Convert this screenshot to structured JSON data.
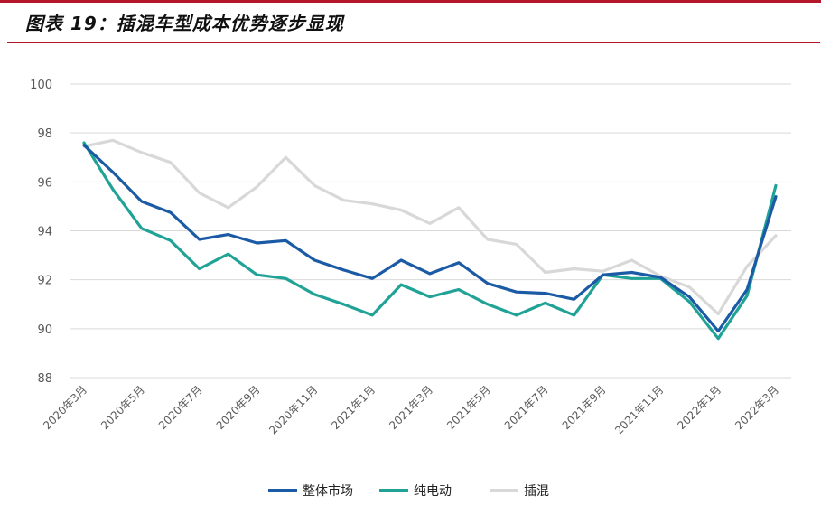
{
  "caption": "图表 19：插混车型成本优势逐步显现",
  "colors": {
    "accent": "#b5172a",
    "overall": "#1b5aa4",
    "bev": "#20a396",
    "phev": "#d8d8d8",
    "grid": "#d9d9d9"
  },
  "chart_data": {
    "type": "line",
    "title": "插混车型成本优势逐步显现",
    "xlabel": "",
    "ylabel": "",
    "ylim": [
      88,
      100
    ],
    "yticks": [
      88,
      90,
      92,
      94,
      96,
      98,
      100
    ],
    "grid": true,
    "legend_position": "bottom",
    "x": [
      "2020年3月",
      "2020年4月",
      "2020年5月",
      "2020年6月",
      "2020年7月",
      "2020年8月",
      "2020年9月",
      "2020年10月",
      "2020年11月",
      "2020年12月",
      "2021年1月",
      "2021年2月",
      "2021年3月",
      "2021年4月",
      "2021年5月",
      "2021年6月",
      "2021年7月",
      "2021年8月",
      "2021年9月",
      "2021年10月",
      "2021年11月",
      "2021年12月",
      "2022年1月",
      "2022年2月",
      "2022年3月"
    ],
    "x_tick_labels": [
      "2020年3月",
      "2020年5月",
      "2020年7月",
      "2020年9月",
      "2020年11月",
      "2021年1月",
      "2021年3月",
      "2021年5月",
      "2021年7月",
      "2021年9月",
      "2021年11月",
      "2022年1月",
      "2022年3月"
    ],
    "series": [
      {
        "name": "整体市场",
        "values": [
          97.5,
          96.4,
          95.2,
          94.75,
          93.65,
          93.85,
          93.5,
          93.6,
          92.8,
          92.4,
          92.05,
          92.8,
          92.25,
          92.7,
          91.85,
          91.5,
          91.45,
          91.2,
          92.2,
          92.3,
          92.1,
          91.3,
          89.9,
          91.6,
          95.4
        ]
      },
      {
        "name": "纯电动",
        "values": [
          97.6,
          95.7,
          94.1,
          93.6,
          92.45,
          93.05,
          92.2,
          92.05,
          91.4,
          91.0,
          90.55,
          91.8,
          91.3,
          91.6,
          91.0,
          90.55,
          91.05,
          90.55,
          92.2,
          92.05,
          92.05,
          91.1,
          89.6,
          91.35,
          95.85
        ]
      },
      {
        "name": "插混",
        "values": [
          97.45,
          97.7,
          97.2,
          96.8,
          95.55,
          94.95,
          95.8,
          97.0,
          95.85,
          95.25,
          95.1,
          94.85,
          94.3,
          94.95,
          93.65,
          93.45,
          92.3,
          92.45,
          92.35,
          92.8,
          92.15,
          91.7,
          90.6,
          92.55,
          93.8
        ]
      }
    ]
  }
}
